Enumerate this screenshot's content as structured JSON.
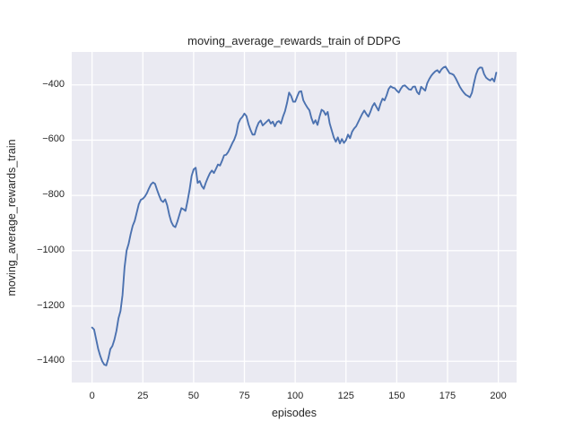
{
  "figure": {
    "background": "#ffffff",
    "plot_bg": "#eaeaf2",
    "grid_color": "#ffffff",
    "line_color": "#4c72b0",
    "text_color": "#262626"
  },
  "chart_data": {
    "type": "line",
    "title": "moving_average_rewards_train of DDPG",
    "xlabel": "episodes",
    "ylabel": "moving_average_rewards_train",
    "xlim": [
      -10,
      209
    ],
    "ylim": [
      -1477,
      -281
    ],
    "x_ticks": [
      0,
      25,
      50,
      75,
      100,
      125,
      150,
      175,
      200
    ],
    "y_ticks": [
      -400,
      -600,
      -800,
      -1000,
      -1200,
      -1400
    ],
    "grid": true,
    "legend": false,
    "series": [
      {
        "name": "moving_average_rewards_train",
        "color": "#4c72b0",
        "x": [
          0,
          1,
          2,
          3,
          4,
          5,
          6,
          7,
          8,
          9,
          10,
          11,
          12,
          13,
          14,
          15,
          16,
          17,
          18,
          19,
          20,
          21,
          22,
          23,
          24,
          25,
          26,
          27,
          28,
          29,
          30,
          31,
          32,
          33,
          34,
          35,
          36,
          37,
          38,
          39,
          40,
          41,
          42,
          43,
          44,
          45,
          46,
          47,
          48,
          49,
          50,
          51,
          52,
          53,
          54,
          55,
          56,
          57,
          58,
          59,
          60,
          61,
          62,
          63,
          64,
          65,
          66,
          67,
          68,
          69,
          70,
          71,
          72,
          73,
          74,
          75,
          76,
          77,
          78,
          79,
          80,
          81,
          82,
          83,
          84,
          85,
          86,
          87,
          88,
          89,
          90,
          91,
          92,
          93,
          94,
          95,
          96,
          97,
          98,
          99,
          100,
          101,
          102,
          103,
          104,
          105,
          106,
          107,
          108,
          109,
          110,
          111,
          112,
          113,
          114,
          115,
          116,
          117,
          118,
          119,
          120,
          121,
          122,
          123,
          124,
          125,
          126,
          127,
          128,
          129,
          130,
          131,
          132,
          133,
          134,
          135,
          136,
          137,
          138,
          139,
          140,
          141,
          142,
          143,
          144,
          145,
          146,
          147,
          148,
          149,
          150,
          151,
          152,
          153,
          154,
          155,
          156,
          157,
          158,
          159,
          160,
          161,
          162,
          163,
          164,
          165,
          166,
          167,
          168,
          169,
          170,
          171,
          172,
          173,
          174,
          175,
          176,
          177,
          178,
          179,
          180,
          181,
          182,
          183,
          184,
          185,
          186,
          187,
          188,
          189,
          190,
          191,
          192,
          193,
          194,
          195,
          196,
          197,
          198,
          199
        ],
        "y": [
          -1278,
          -1285,
          -1320,
          -1355,
          -1380,
          -1400,
          -1412,
          -1415,
          -1390,
          -1356,
          -1345,
          -1322,
          -1290,
          -1245,
          -1218,
          -1160,
          -1060,
          -1000,
          -975,
          -940,
          -910,
          -892,
          -862,
          -832,
          -816,
          -812,
          -804,
          -792,
          -775,
          -760,
          -753,
          -758,
          -780,
          -800,
          -818,
          -824,
          -814,
          -836,
          -870,
          -896,
          -910,
          -915,
          -895,
          -870,
          -846,
          -850,
          -856,
          -820,
          -780,
          -730,
          -706,
          -700,
          -755,
          -748,
          -766,
          -776,
          -754,
          -736,
          -720,
          -710,
          -719,
          -704,
          -688,
          -692,
          -675,
          -655,
          -653,
          -643,
          -628,
          -612,
          -598,
          -578,
          -540,
          -524,
          -516,
          -504,
          -513,
          -542,
          -563,
          -580,
          -580,
          -555,
          -537,
          -529,
          -547,
          -540,
          -533,
          -526,
          -540,
          -533,
          -550,
          -535,
          -531,
          -540,
          -515,
          -495,
          -465,
          -428,
          -440,
          -461,
          -461,
          -442,
          -425,
          -423,
          -456,
          -470,
          -482,
          -492,
          -520,
          -540,
          -528,
          -545,
          -515,
          -490,
          -495,
          -509,
          -498,
          -540,
          -565,
          -590,
          -606,
          -590,
          -612,
          -596,
          -610,
          -600,
          -580,
          -593,
          -570,
          -558,
          -550,
          -535,
          -520,
          -505,
          -493,
          -505,
          -515,
          -498,
          -478,
          -466,
          -480,
          -493,
          -468,
          -450,
          -456,
          -438,
          -415,
          -405,
          -410,
          -412,
          -421,
          -428,
          -414,
          -404,
          -402,
          -409,
          -416,
          -418,
          -407,
          -406,
          -426,
          -434,
          -407,
          -414,
          -421,
          -394,
          -379,
          -367,
          -358,
          -351,
          -347,
          -356,
          -344,
          -337,
          -334,
          -346,
          -358,
          -360,
          -364,
          -376,
          -391,
          -406,
          -418,
          -428,
          -436,
          -440,
          -445,
          -429,
          -394,
          -363,
          -344,
          -337,
          -338,
          -361,
          -374,
          -380,
          -384,
          -377,
          -388,
          -356
        ]
      }
    ]
  }
}
